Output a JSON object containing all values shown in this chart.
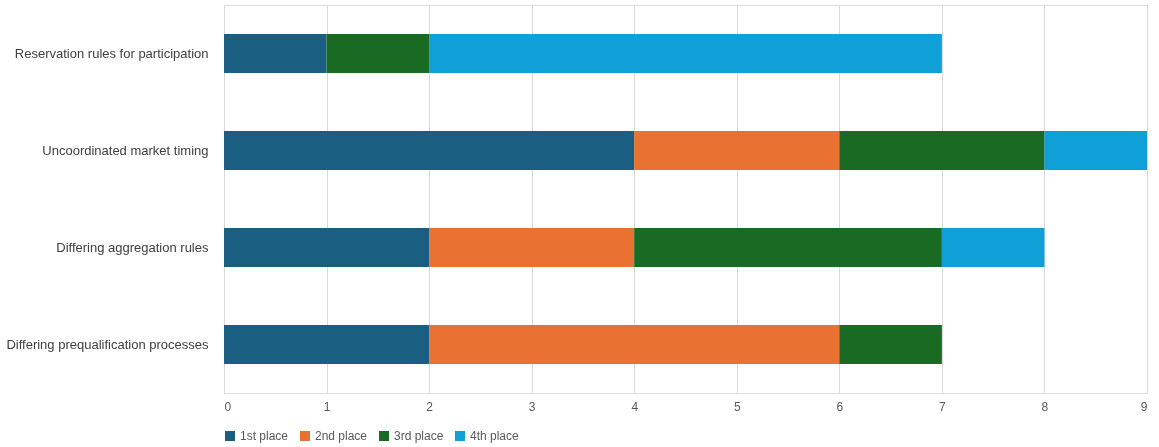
{
  "chart_data": {
    "type": "bar",
    "orientation": "horizontal",
    "stacked": true,
    "categories": [
      "Reservation rules for participation",
      "Uncoordinated market timing",
      "Differing aggregation rules",
      "Differing prequalification processes"
    ],
    "series": [
      {
        "name": "1st place",
        "color": "#1a5e82",
        "values": [
          1,
          4,
          2,
          2
        ]
      },
      {
        "name": "2nd place",
        "color": "#e97132",
        "values": [
          0,
          2,
          2,
          4
        ]
      },
      {
        "name": "3rd place",
        "color": "#196b24",
        "values": [
          1,
          2,
          3,
          1
        ]
      },
      {
        "name": "4th place",
        "color": "#10a0d8",
        "values": [
          5,
          1,
          1,
          0
        ]
      }
    ],
    "xlim": [
      0,
      9
    ],
    "xticks": [
      0,
      1,
      2,
      3,
      4,
      5,
      6,
      7,
      8,
      9
    ],
    "grid": "x",
    "legend": "bottom"
  }
}
